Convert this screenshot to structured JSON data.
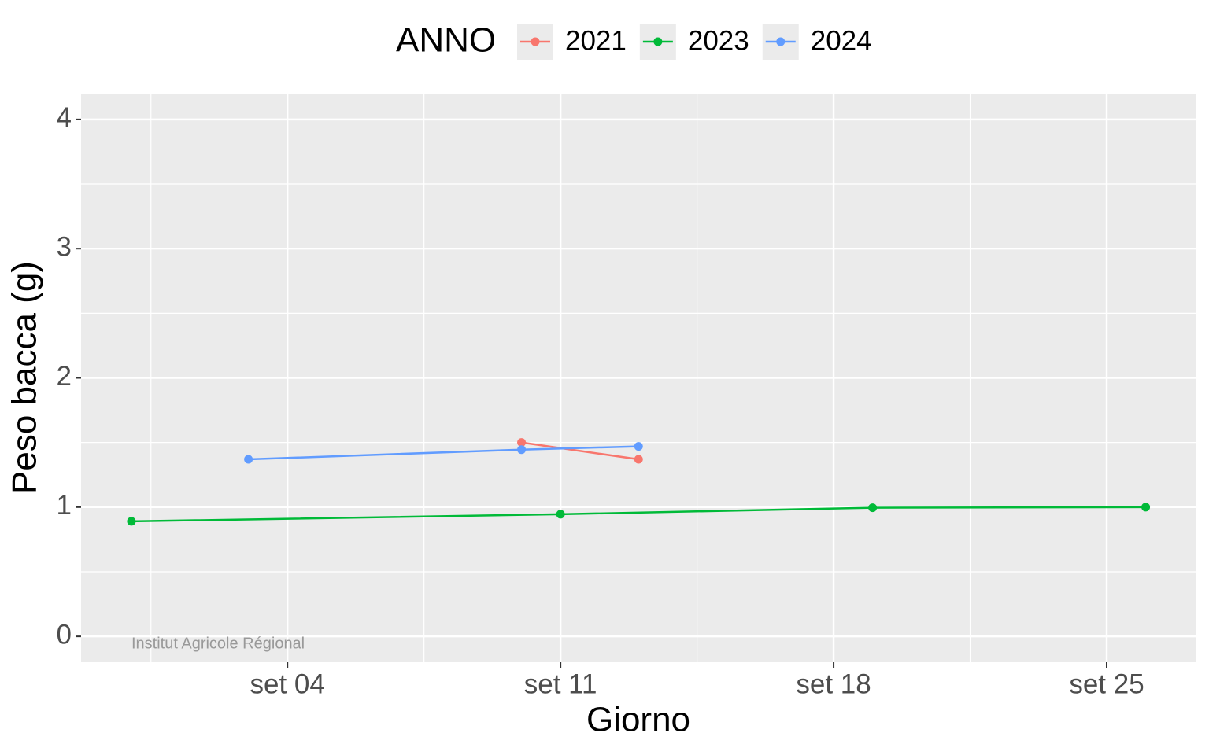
{
  "chart_data": {
    "type": "line",
    "x_label": "Giorno",
    "y_label": "Peso bacca (g)",
    "legend_title": "ANNO",
    "legend_position": "top",
    "watermark": "Institut Agricole Régional",
    "series": [
      {
        "name": "2021",
        "color": "#F8766D",
        "x": [
          10,
          13
        ],
        "values": [
          1.5,
          1.37
        ]
      },
      {
        "name": "2023",
        "color": "#00BA38",
        "x": [
          0,
          11,
          19,
          26
        ],
        "values": [
          0.89,
          0.945,
          0.995,
          1.0
        ]
      },
      {
        "name": "2024",
        "color": "#619CFF",
        "x": [
          3,
          10,
          13
        ],
        "values": [
          1.37,
          1.445,
          1.47
        ]
      }
    ],
    "xlim": [
      -1.29,
      27.3
    ],
    "xticks": [
      {
        "value": 4,
        "label": "set 04"
      },
      {
        "value": 11,
        "label": "set 11"
      },
      {
        "value": 18,
        "label": "set 18"
      },
      {
        "value": 25,
        "label": "set 25"
      }
    ],
    "ylim": [
      -0.2,
      4.2
    ],
    "yticks": [
      0,
      1,
      2,
      3,
      4
    ],
    "grid": true
  }
}
